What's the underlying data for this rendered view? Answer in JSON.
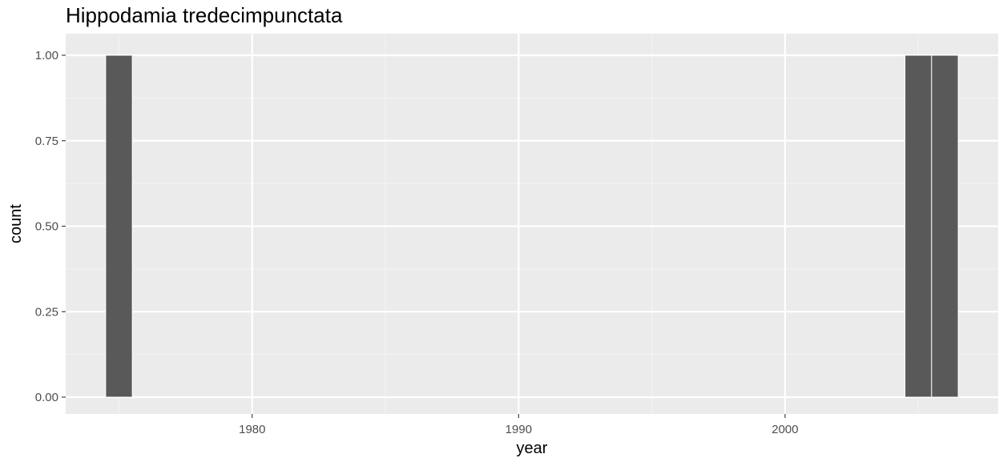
{
  "chart_data": {
    "type": "bar",
    "title": "Hippodamia tredecimpunctata",
    "xlabel": "year",
    "ylabel": "count",
    "xlim": [
      1973,
      2008
    ],
    "ylim": [
      0,
      1.05
    ],
    "x_ticks": [
      1980,
      1990,
      2000
    ],
    "y_ticks": [
      0.0,
      0.25,
      0.5,
      0.75,
      1.0
    ],
    "x_tick_labels": [
      "1980",
      "1990",
      "2000"
    ],
    "y_tick_labels": [
      "0.00",
      "0.25",
      "0.50",
      "0.75",
      "1.00"
    ],
    "bin_width": 1,
    "bars": [
      {
        "x": 1975,
        "value": 1
      },
      {
        "x": 2005,
        "value": 1
      },
      {
        "x": 2006,
        "value": 1
      }
    ],
    "grid": true,
    "colors": {
      "panel_background": "#ebebeb",
      "grid_major": "#ffffff",
      "grid_minor": "#f4f4f4",
      "bar_fill": "#595959",
      "bar_outline": "#ffffff",
      "tick_text": "#4d4d4d",
      "axis_title_text": "#000000"
    }
  }
}
